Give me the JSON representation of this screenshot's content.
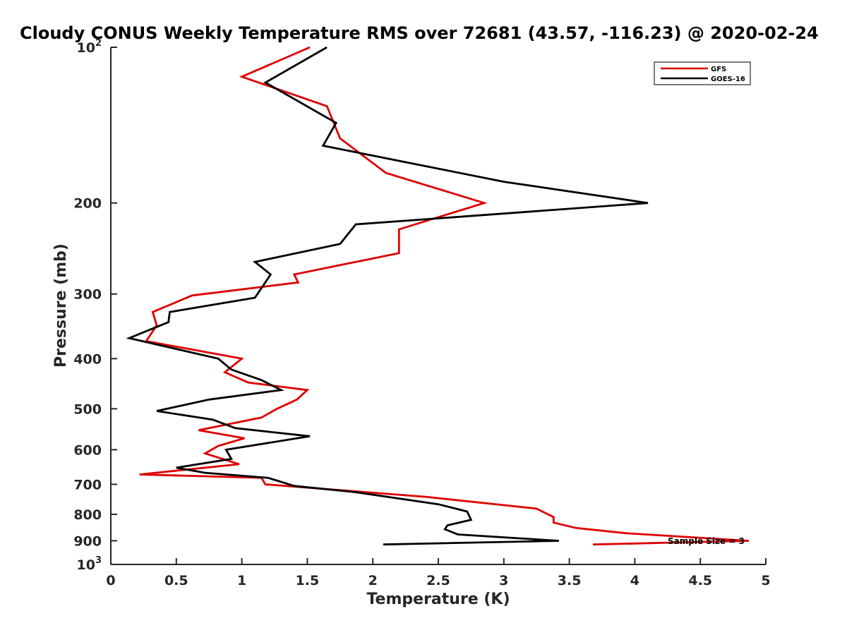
{
  "chart_data": {
    "type": "line",
    "title": "Cloudy CONUS Weekly Temperature RMS over 72681 (43.57, -116.23) @ 2020-02-24",
    "xlabel": "Temperature (K)",
    "ylabel": "Pressure (mb)",
    "xlim": [
      0,
      5
    ],
    "ylim": [
      100,
      1000
    ],
    "y_scale": "log",
    "y_direction": "reverse",
    "x_ticks": [
      0,
      0.5,
      1,
      1.5,
      2,
      2.5,
      3,
      3.5,
      4,
      4.5,
      5
    ],
    "x_tick_labels": [
      "0",
      "0.5",
      "1",
      "1.5",
      "2",
      "2.5",
      "3",
      "3.5",
      "4",
      "4.5",
      "5"
    ],
    "y_ticks_plain": [
      {
        "value": 200,
        "label": "200"
      },
      {
        "value": 300,
        "label": "300"
      },
      {
        "value": 400,
        "label": "400"
      },
      {
        "value": 500,
        "label": "500"
      },
      {
        "value": 600,
        "label": "600"
      },
      {
        "value": 700,
        "label": "700"
      },
      {
        "value": 800,
        "label": "800"
      },
      {
        "value": 900,
        "label": "900"
      }
    ],
    "y_ticks_power": [
      {
        "value": 100,
        "base": "10",
        "exponent": "2"
      },
      {
        "value": 1000,
        "base": "10",
        "exponent": "3"
      }
    ],
    "legend_position": "top-right",
    "grid": false,
    "annotation": "Sample Size = 3",
    "series": [
      {
        "name": "GFS",
        "color": "#dd0000",
        "points": [
          [
            1.52,
            100
          ],
          [
            1.0,
            114
          ],
          [
            1.65,
            130
          ],
          [
            1.75,
            150
          ],
          [
            2.1,
            175
          ],
          [
            2.85,
            200
          ],
          [
            2.2,
            225
          ],
          [
            2.2,
            250
          ],
          [
            1.4,
            275
          ],
          [
            1.43,
            285
          ],
          [
            0.62,
            302
          ],
          [
            0.32,
            325
          ],
          [
            0.35,
            345
          ],
          [
            0.27,
            370
          ],
          [
            1.0,
            400
          ],
          [
            0.87,
            425
          ],
          [
            1.05,
            445
          ],
          [
            1.5,
            460
          ],
          [
            1.42,
            480
          ],
          [
            1.27,
            500
          ],
          [
            1.15,
            520
          ],
          [
            0.67,
            550
          ],
          [
            1.02,
            570
          ],
          [
            0.82,
            590
          ],
          [
            0.72,
            610
          ],
          [
            0.98,
            640
          ],
          [
            0.22,
            670
          ],
          [
            1.15,
            680
          ],
          [
            1.18,
            700
          ],
          [
            2.4,
            740
          ],
          [
            3.25,
            780
          ],
          [
            3.38,
            810
          ],
          [
            3.38,
            830
          ],
          [
            3.55,
            850
          ],
          [
            3.93,
            870
          ],
          [
            4.87,
            900
          ],
          [
            3.68,
            915
          ]
        ]
      },
      {
        "name": "GOES-16",
        "color": "#000000",
        "points": [
          [
            1.65,
            100
          ],
          [
            1.18,
            117
          ],
          [
            1.72,
            140
          ],
          [
            1.62,
            155
          ],
          [
            3.0,
            182
          ],
          [
            4.1,
            200
          ],
          [
            1.87,
            220
          ],
          [
            1.75,
            240
          ],
          [
            1.1,
            260
          ],
          [
            1.22,
            275
          ],
          [
            1.1,
            305
          ],
          [
            0.45,
            325
          ],
          [
            0.44,
            340
          ],
          [
            0.14,
            365
          ],
          [
            0.82,
            400
          ],
          [
            0.92,
            420
          ],
          [
            1.15,
            440
          ],
          [
            1.3,
            460
          ],
          [
            0.75,
            480
          ],
          [
            0.35,
            505
          ],
          [
            0.78,
            525
          ],
          [
            0.95,
            545
          ],
          [
            1.52,
            565
          ],
          [
            0.88,
            600
          ],
          [
            0.92,
            625
          ],
          [
            0.5,
            650
          ],
          [
            0.72,
            665
          ],
          [
            1.2,
            680
          ],
          [
            1.4,
            705
          ],
          [
            1.87,
            725
          ],
          [
            2.5,
            765
          ],
          [
            2.72,
            790
          ],
          [
            2.75,
            820
          ],
          [
            2.57,
            840
          ],
          [
            2.55,
            855
          ],
          [
            2.65,
            875
          ],
          [
            3.42,
            900
          ],
          [
            2.08,
            915
          ]
        ]
      }
    ]
  }
}
